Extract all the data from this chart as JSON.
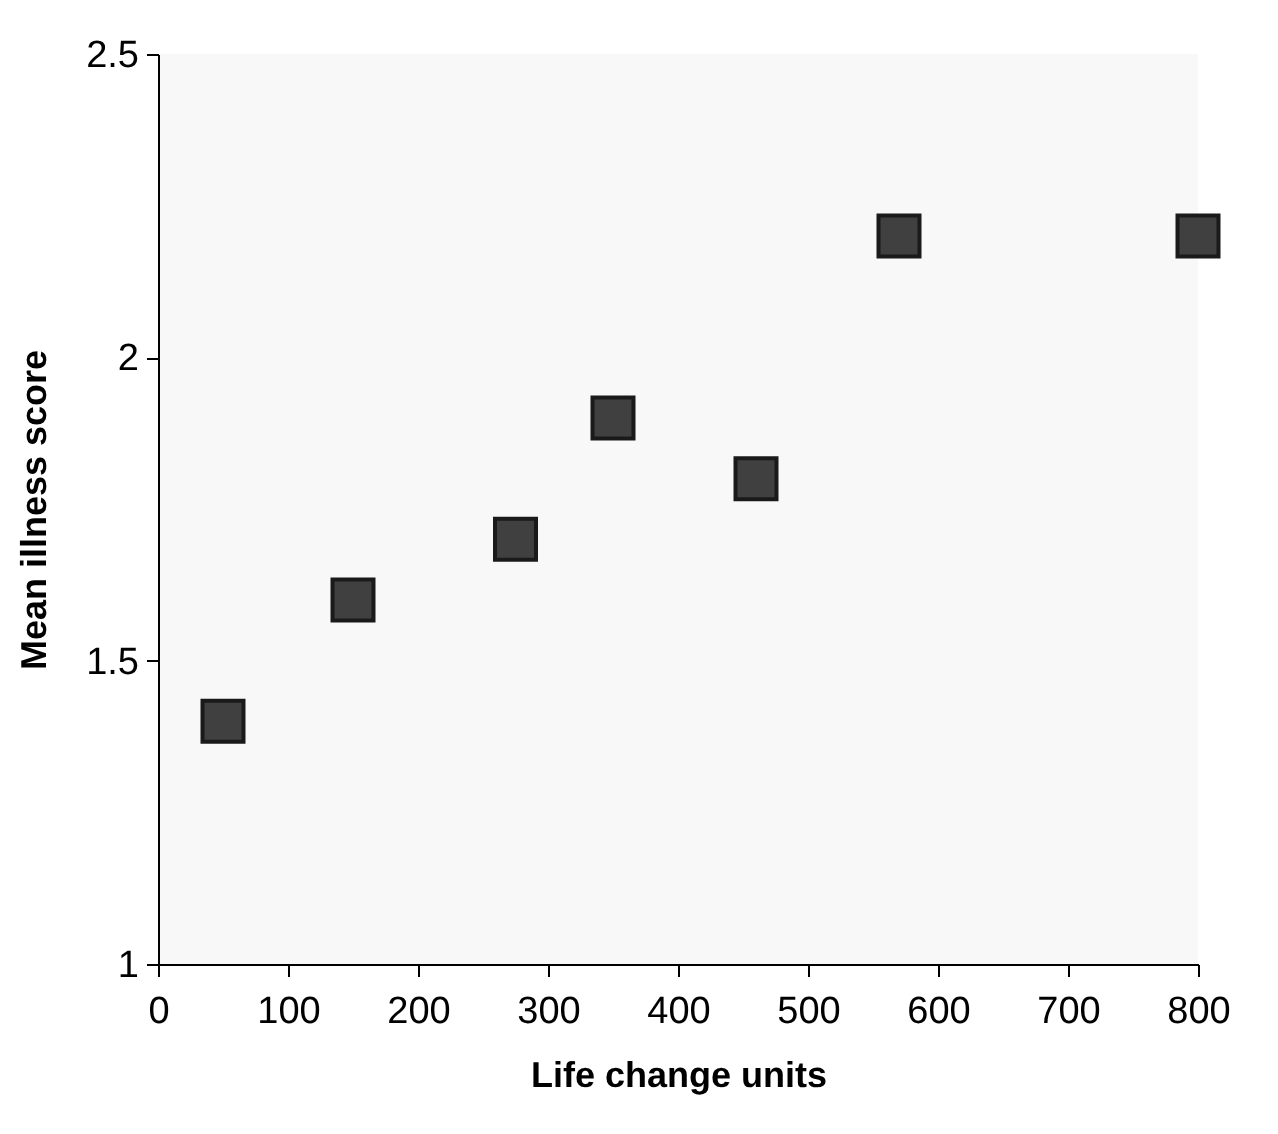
{
  "chart_data": {
    "type": "scatter",
    "xlabel": "Life change units",
    "ylabel": "Mean illness score",
    "x": [
      50,
      150,
      275,
      350,
      460,
      570,
      800
    ],
    "series": [
      {
        "color": "#404040",
        "values": [
          1.4,
          1.6,
          1.7,
          1.9,
          1.8,
          2.2,
          2.2
        ]
      }
    ],
    "xlim": [
      0,
      800
    ],
    "xticks": [
      0,
      100,
      200,
      300,
      400,
      500,
      600,
      700,
      800
    ],
    "ylim": [
      1,
      2.5
    ],
    "yticks": [
      1,
      1.5,
      2,
      2.5
    ],
    "marker": "square",
    "grid": false,
    "legend": false
  }
}
